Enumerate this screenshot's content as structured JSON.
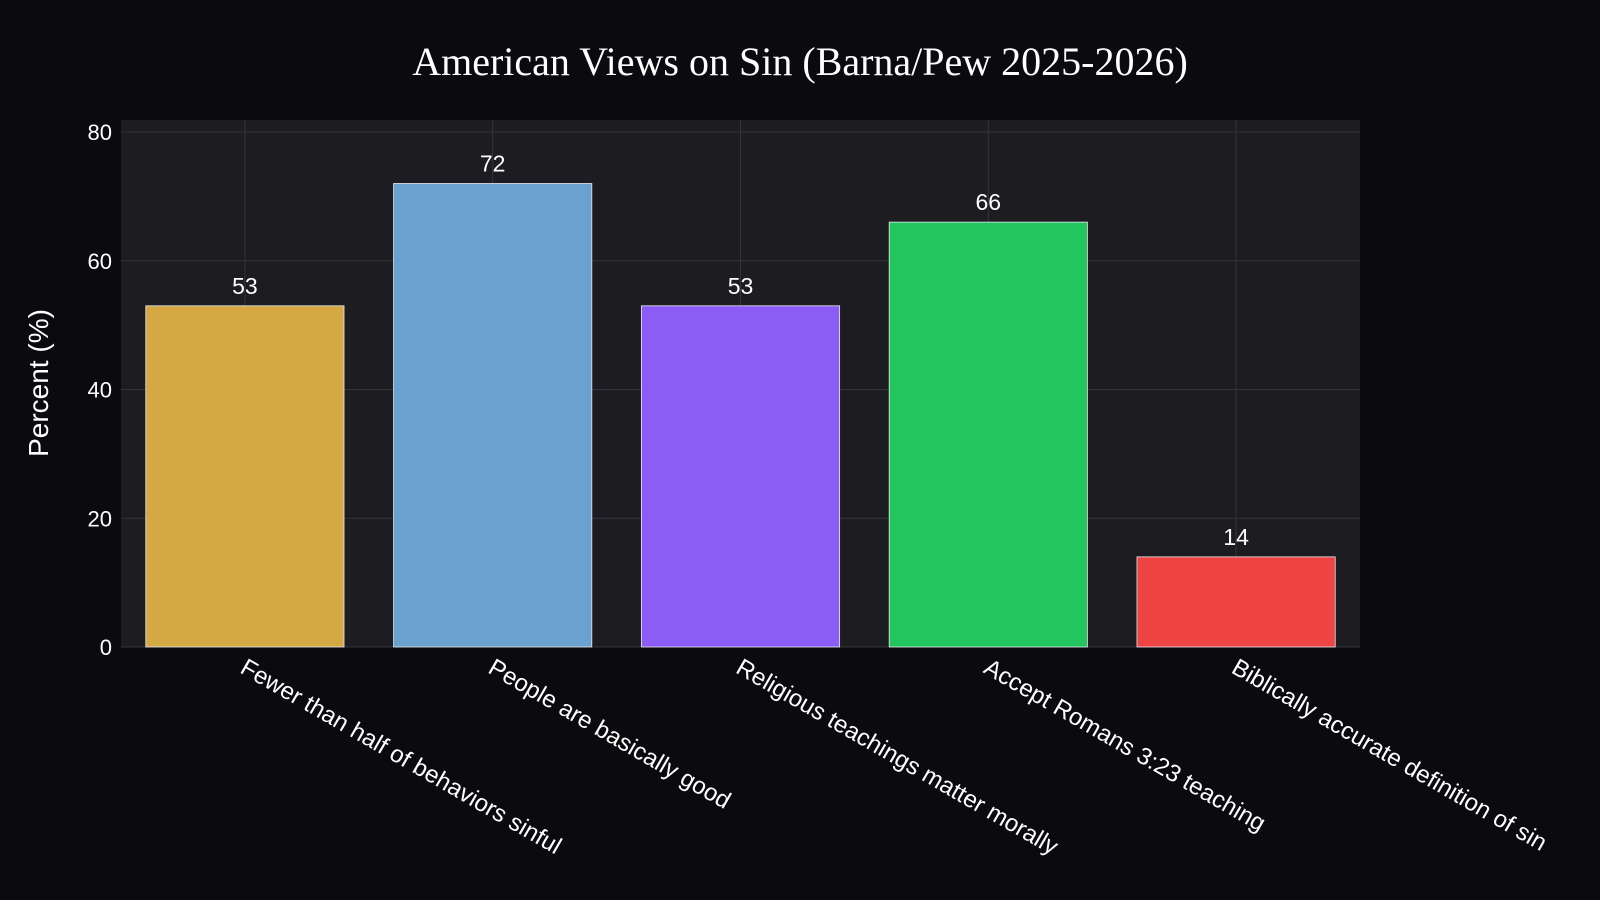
{
  "chart_data": {
    "type": "bar",
    "title": "American Views on Sin (Barna/Pew 2025-2026)",
    "xlabel": "",
    "ylabel": "Percent (%)",
    "ylim": [
      0,
      80
    ],
    "yticks": [
      0,
      20,
      40,
      60,
      80
    ],
    "grid": true,
    "categories": [
      "Fewer than half of behaviors sinful",
      "People are basically good",
      "Religious teachings matter morally",
      "Accept Romans 3:23 teaching",
      "Biblically accurate definition of sin"
    ],
    "values": [
      53,
      72,
      53,
      66,
      14
    ],
    "colors": [
      "#d4a843",
      "#6ba1cf",
      "#8b5cf6",
      "#22c55e",
      "#ef4444"
    ],
    "background": "#0b0b0f",
    "plot_background": "#1c1c21"
  }
}
